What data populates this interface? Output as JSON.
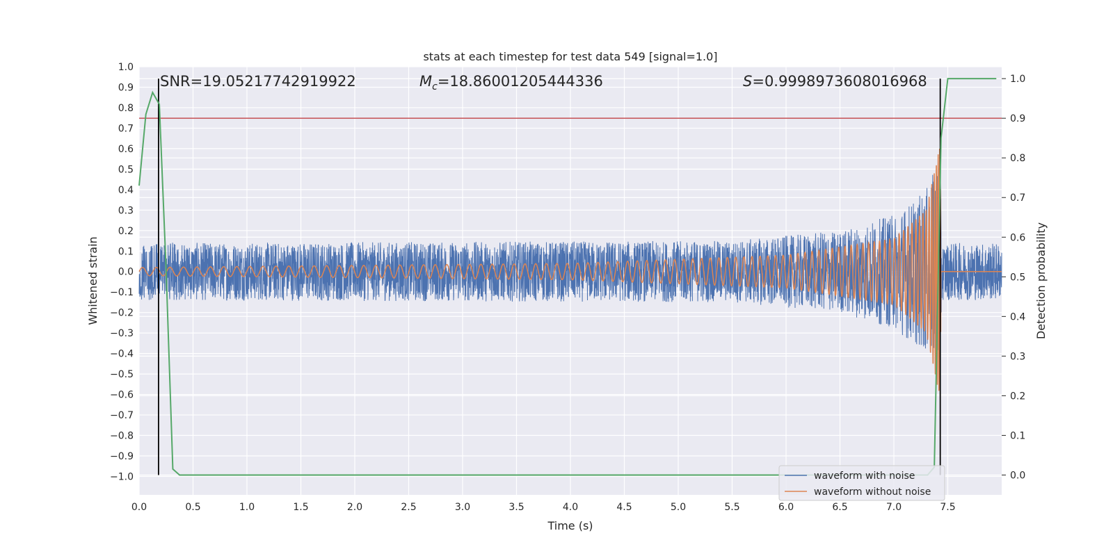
{
  "chart_data": {
    "type": "line",
    "title": "stats at each timestep for test data 549 [signal=1.0]",
    "xlabel": "Time (s)",
    "ylabel": "Whitened strain",
    "y2label": "Detection probability",
    "xlim": [
      0.0,
      8.0
    ],
    "ylim": [
      -1.09,
      1.0
    ],
    "y2lim": [
      -0.05,
      1.03
    ],
    "x_ticks": [
      "0.0",
      "0.5",
      "1.0",
      "1.5",
      "2.0",
      "2.5",
      "3.0",
      "3.5",
      "4.0",
      "4.5",
      "5.0",
      "5.5",
      "6.0",
      "6.5",
      "7.0",
      "7.5"
    ],
    "y_ticks": [
      "1.0",
      "0.9",
      "0.8",
      "0.7",
      "0.6",
      "0.5",
      "0.4",
      "0.3",
      "0.2",
      "0.1",
      "0.0",
      "−0.1",
      "−0.2",
      "−0.3",
      "−0.4",
      "−0.5",
      "−0.6",
      "−0.7",
      "−0.8",
      "−0.9",
      "−1.0"
    ],
    "y2_ticks": [
      "1.0",
      "0.9",
      "0.8",
      "0.7",
      "0.6",
      "0.5",
      "0.4",
      "0.3",
      "0.2",
      "0.1",
      "0.0"
    ],
    "annotations": {
      "snr": "SNR=19.05217742919922",
      "mc_symbol": "M",
      "mc_sub": "c",
      "mc_value": "=18.86001205444336",
      "s_symbol": "S",
      "s_value": "=0.9998973608016968"
    },
    "series": [
      {
        "name": "waveform with noise",
        "axis": "left",
        "color": "#4c72b0",
        "description_envelope": [
          {
            "t": 0.0,
            "amp": 0.14
          },
          {
            "t": 5.5,
            "amp": 0.15
          },
          {
            "t": 6.5,
            "amp": 0.2
          },
          {
            "t": 7.0,
            "amp": 0.28
          },
          {
            "t": 7.3,
            "amp": 0.4
          },
          {
            "t": 7.42,
            "amp": 0.55
          },
          {
            "t": 7.45,
            "amp": 0.14
          },
          {
            "t": 8.0,
            "amp": 0.14
          }
        ]
      },
      {
        "name": "waveform without noise",
        "axis": "left",
        "color": "#dd8452",
        "description_envelope": [
          {
            "t": 0.0,
            "amp": 0.02
          },
          {
            "t": 4.0,
            "amp": 0.04
          },
          {
            "t": 6.0,
            "amp": 0.08
          },
          {
            "t": 7.0,
            "amp": 0.16
          },
          {
            "t": 7.3,
            "amp": 0.3
          },
          {
            "t": 7.43,
            "amp": 0.62
          },
          {
            "t": 7.44,
            "amp": 0.0
          },
          {
            "t": 8.0,
            "amp": 0.0
          }
        ]
      },
      {
        "name": "detection probability",
        "axis": "right",
        "color": "#55a868",
        "x": [
          0.0,
          0.0625,
          0.125,
          0.1875,
          0.25,
          0.3125,
          0.375,
          0.4375,
          7.25,
          7.3125,
          7.375,
          7.4375,
          7.5,
          7.95
        ],
        "y": [
          0.73,
          0.91,
          0.965,
          0.935,
          0.52,
          0.015,
          0.0,
          0.0,
          0.0,
          0.0,
          0.02,
          0.85,
          1.0,
          1.0
        ]
      }
    ],
    "threshold": {
      "axis": "right",
      "value": 0.9,
      "color": "#c44e52"
    },
    "vlines": [
      {
        "x": 0.18,
        "color": "#000000"
      },
      {
        "x": 7.43,
        "color": "#000000"
      }
    ],
    "legend": {
      "placement": "lower-right",
      "entries": [
        "waveform with noise",
        "waveform without noise"
      ]
    },
    "grid": true
  }
}
